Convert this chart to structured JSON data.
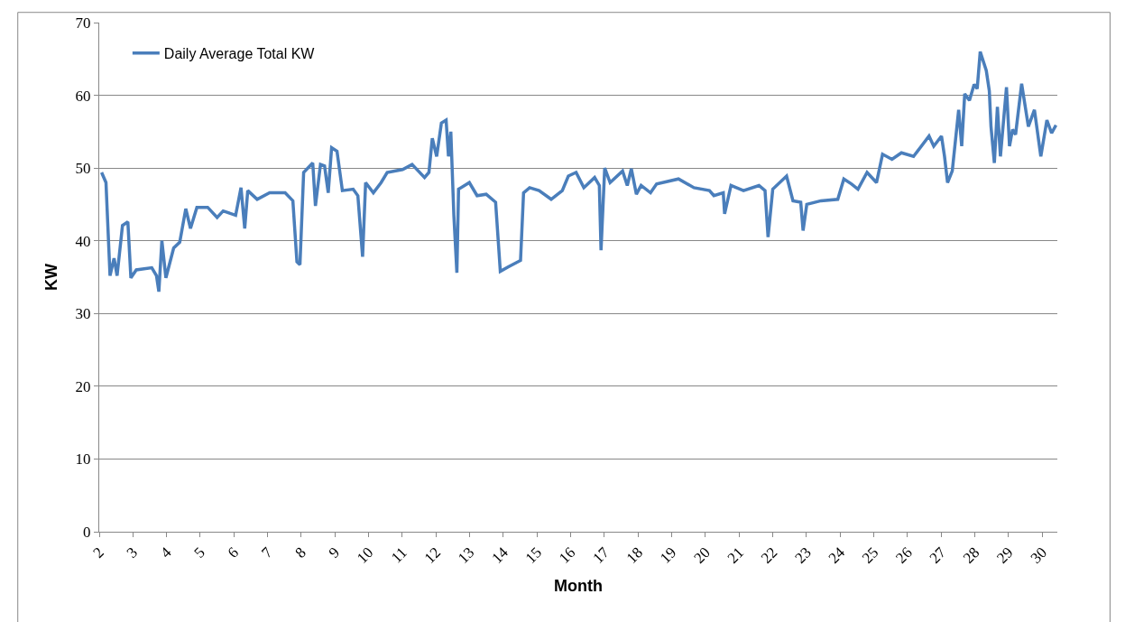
{
  "chart_data": {
    "type": "line",
    "xlabel": "Month",
    "ylabel": "KW",
    "xlim": [
      2,
      30.45
    ],
    "xticks": [
      2,
      3,
      4,
      5,
      6,
      7,
      8,
      9,
      10,
      11,
      12,
      13,
      14,
      15,
      16,
      17,
      18,
      19,
      20,
      21,
      22,
      23,
      24,
      25,
      26,
      27,
      28,
      29,
      30
    ],
    "ylim": [
      0,
      70
    ],
    "yticks": [
      0,
      10,
      20,
      30,
      40,
      50,
      60,
      70
    ],
    "grid": "y",
    "legend": "top left",
    "marker": "none",
    "line_style": "solid",
    "series": [
      {
        "name": "Daily Average Total KW",
        "color": "#4a7ebb",
        "x": [
          2.07,
          2.2,
          2.32,
          2.44,
          2.53,
          2.69,
          2.85,
          2.94,
          3.1,
          3.56,
          3.7,
          3.77,
          3.86,
          3.98,
          4.21,
          4.39,
          4.57,
          4.71,
          4.9,
          5.22,
          5.5,
          5.68,
          6.05,
          6.21,
          6.32,
          6.41,
          6.69,
          7.06,
          7.52,
          7.75,
          7.87,
          7.96,
          8.07,
          8.34,
          8.42,
          8.57,
          8.69,
          8.8,
          8.9,
          9.06,
          9.22,
          9.54,
          9.68,
          9.82,
          9.91,
          10.14,
          10.37,
          10.55,
          11.01,
          11.29,
          11.66,
          11.79,
          11.89,
          12.02,
          12.16,
          12.3,
          12.37,
          12.44,
          12.53,
          12.62,
          12.67,
          12.99,
          13.22,
          13.49,
          13.77,
          13.91,
          14.14,
          14.51,
          14.6,
          14.78,
          15.06,
          15.42,
          15.75,
          15.93,
          16.16,
          16.39,
          16.71,
          16.85,
          16.9,
          17.01,
          17.17,
          17.54,
          17.68,
          17.8,
          17.95,
          18.09,
          18.37,
          18.55,
          19.2,
          19.66,
          20.12,
          20.25,
          20.53,
          20.57,
          20.76,
          21.13,
          21.59,
          21.77,
          21.86,
          22.0,
          22.41,
          22.6,
          22.83,
          22.9,
          23.01,
          23.43,
          23.93,
          24.11,
          24.34,
          24.53,
          24.8,
          25.08,
          25.26,
          25.54,
          25.82,
          26.18,
          26.64,
          26.78,
          27.01,
          27.1,
          27.19,
          27.33,
          27.52,
          27.61,
          27.7,
          27.84,
          27.98,
          28.07,
          28.16,
          28.34,
          28.43,
          28.48,
          28.58,
          28.67,
          28.76,
          28.94,
          29.03,
          29.12,
          29.21,
          29.39,
          29.59,
          29.77,
          29.96,
          30.14,
          30.28,
          30.41
        ],
        "values": [
          49.4,
          48.0,
          35.2,
          37.6,
          35.2,
          42.1,
          42.6,
          34.9,
          36.0,
          36.3,
          35.2,
          33.0,
          40.0,
          34.9,
          39.0,
          39.8,
          44.4,
          41.7,
          44.6,
          44.6,
          43.2,
          44.1,
          43.5,
          47.3,
          41.7,
          46.9,
          45.7,
          46.6,
          46.6,
          45.5,
          37.1,
          36.7,
          49.4,
          50.7,
          44.8,
          50.5,
          50.3,
          46.6,
          52.8,
          52.3,
          46.9,
          47.1,
          46.2,
          37.8,
          48.0,
          46.6,
          48.0,
          49.4,
          49.8,
          50.5,
          48.7,
          49.4,
          54.1,
          51.6,
          56.2,
          56.6,
          51.6,
          55.0,
          43.5,
          35.6,
          47.1,
          48.0,
          46.2,
          46.4,
          45.3,
          35.8,
          36.4,
          37.3,
          46.6,
          47.3,
          46.9,
          45.7,
          46.9,
          48.9,
          49.4,
          47.3,
          48.7,
          47.6,
          38.7,
          50.0,
          48.0,
          49.6,
          47.6,
          49.9,
          46.4,
          47.6,
          46.6,
          47.8,
          48.5,
          47.3,
          46.9,
          46.2,
          46.6,
          43.7,
          47.6,
          46.9,
          47.6,
          46.9,
          40.5,
          47.1,
          48.9,
          45.5,
          45.3,
          41.4,
          45.0,
          45.5,
          45.7,
          48.5,
          47.8,
          47.1,
          49.4,
          48.0,
          51.9,
          51.2,
          52.1,
          51.6,
          54.4,
          53.0,
          54.4,
          51.6,
          48.0,
          49.6,
          58.0,
          53.0,
          60.2,
          59.3,
          61.5,
          60.9,
          66.0,
          63.4,
          60.6,
          55.7,
          50.7,
          58.4,
          51.6,
          61.1,
          53.0,
          55.3,
          54.6,
          61.6,
          55.7,
          58.0,
          51.6,
          56.6,
          54.8,
          55.9
        ]
      }
    ]
  }
}
